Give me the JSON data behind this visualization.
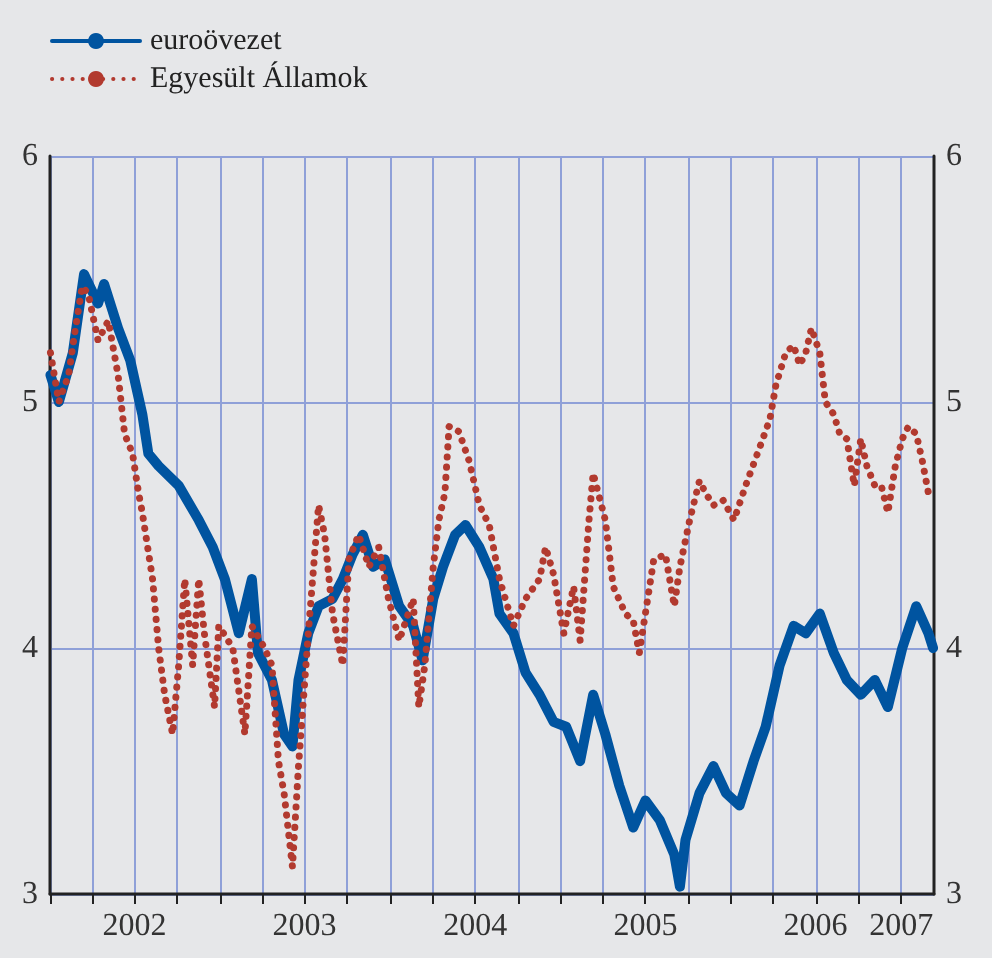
{
  "chart_data": {
    "type": "line",
    "xlim": [
      "2002-01-01",
      "2007-03-12"
    ],
    "xticks": [
      {
        "value": "2002-01-01",
        "label": null
      },
      {
        "value": "2002-04-01",
        "label": null
      },
      {
        "value": "2002-07-01",
        "label": "2002"
      },
      {
        "value": "2002-10-01",
        "label": null
      },
      {
        "value": "2003-01-01",
        "label": null
      },
      {
        "value": "2003-04-01",
        "label": null
      },
      {
        "value": "2003-07-01",
        "label": "2003"
      },
      {
        "value": "2003-10-01",
        "label": null
      },
      {
        "value": "2004-01-01",
        "label": null
      },
      {
        "value": "2004-04-01",
        "label": null
      },
      {
        "value": "2004-07-01",
        "label": "2004"
      },
      {
        "value": "2004-10-01",
        "label": null
      },
      {
        "value": "2005-01-01",
        "label": null
      },
      {
        "value": "2005-04-01",
        "label": null
      },
      {
        "value": "2005-07-01",
        "label": "2005"
      },
      {
        "value": "2005-10-01",
        "label": null
      },
      {
        "value": "2006-01-01",
        "label": null
      },
      {
        "value": "2006-04-01",
        "label": null
      },
      {
        "value": "2006-07-01",
        "label": "2006"
      },
      {
        "value": "2006-10-01",
        "label": null
      },
      {
        "value": "2007-01-01",
        "label": "2007"
      }
    ],
    "ylim": [
      3,
      6
    ],
    "yticks": [
      3,
      4,
      5,
      6
    ],
    "y2lim": [
      3,
      6
    ],
    "y2ticks": [
      3,
      4,
      5,
      6
    ],
    "grid": true,
    "legend": "top left",
    "marker": "none",
    "series": [
      {
        "name": "euroövezet",
        "color": "#0054a0",
        "line_style": "solid",
        "x": [
          "2002-01-02",
          "2002-01-20",
          "2002-02-19",
          "2002-03-15",
          "2002-04-14",
          "2002-04-27",
          "2002-05-27",
          "2002-06-22",
          "2002-07-18",
          "2002-07-31",
          "2002-08-22",
          "2002-10-04",
          "2002-11-16",
          "2002-12-16",
          "2003-01-11",
          "2003-02-10",
          "2003-03-10",
          "2003-03-23",
          "2003-04-22",
          "2003-05-18",
          "2003-06-05",
          "2003-06-18",
          "2003-07-09",
          "2003-07-31",
          "2003-08-30",
          "2003-09-21",
          "2003-10-12",
          "2003-11-03",
          "2003-11-25",
          "2003-12-20",
          "2004-01-20",
          "2004-02-19",
          "2004-03-10",
          "2004-04-02",
          "2004-04-23",
          "2004-05-19",
          "2004-06-10",
          "2004-07-10",
          "2004-08-09",
          "2004-08-22",
          "2004-09-21",
          "2004-10-17",
          "2004-11-16",
          "2004-12-16",
          "2005-01-12",
          "2005-02-11",
          "2005-03-11",
          "2005-04-06",
          "2005-05-06",
          "2005-06-05",
          "2005-07-01",
          "2005-08-01",
          "2005-09-01",
          "2005-09-13",
          "2005-09-25",
          "2005-10-25",
          "2005-11-24",
          "2005-12-21",
          "2006-01-19",
          "2006-02-18",
          "2006-03-16",
          "2006-04-15",
          "2006-05-15",
          "2006-06-10",
          "2006-07-10",
          "2006-08-09",
          "2006-09-06",
          "2006-10-06",
          "2006-11-05",
          "2006-12-03",
          "2007-01-03",
          "2007-02-02",
          "2007-02-28",
          "2007-03-10"
        ],
        "values": [
          5.11,
          5.0,
          5.2,
          5.52,
          5.4,
          5.48,
          5.3,
          5.17,
          4.95,
          4.79,
          4.74,
          4.66,
          4.52,
          4.41,
          4.28,
          4.06,
          4.28,
          3.98,
          3.87,
          3.65,
          3.6,
          3.87,
          4.06,
          4.17,
          4.2,
          4.28,
          4.38,
          4.46,
          4.33,
          4.36,
          4.17,
          4.09,
          3.95,
          4.2,
          4.33,
          4.46,
          4.5,
          4.41,
          4.28,
          4.14,
          4.06,
          3.9,
          3.81,
          3.7,
          3.68,
          3.54,
          3.81,
          3.65,
          3.44,
          3.27,
          3.38,
          3.3,
          3.16,
          3.03,
          3.22,
          3.41,
          3.52,
          3.41,
          3.36,
          3.54,
          3.68,
          3.93,
          4.09,
          4.06,
          4.14,
          3.98,
          3.87,
          3.81,
          3.87,
          3.76,
          4.0,
          4.17,
          4.06,
          4.0
        ]
      },
      {
        "name": "Egyesült Államok",
        "color": "#b23a2f",
        "line_style": "dotted",
        "x": [
          "2002-01-02",
          "2002-01-20",
          "2002-02-10",
          "2002-02-23",
          "2002-03-11",
          "2002-03-24",
          "2002-04-14",
          "2002-05-06",
          "2002-05-27",
          "2002-06-10",
          "2002-06-27",
          "2002-07-10",
          "2002-07-18",
          "2002-08-09",
          "2002-08-22",
          "2002-09-04",
          "2002-09-21",
          "2002-10-04",
          "2002-10-17",
          "2002-11-03",
          "2002-11-16",
          "2002-11-28",
          "2002-12-20",
          "2002-12-29",
          "2003-01-28",
          "2003-02-23",
          "2003-03-10",
          "2003-04-06",
          "2003-04-22",
          "2003-05-06",
          "2003-05-18",
          "2003-06-05",
          "2003-06-18",
          "2003-07-09",
          "2003-07-31",
          "2003-08-13",
          "2003-08-30",
          "2003-09-21",
          "2003-10-04",
          "2003-10-25",
          "2003-11-16",
          "2003-12-07",
          "2003-12-28",
          "2004-01-20",
          "2004-02-19",
          "2004-03-02",
          "2004-03-15",
          "2004-04-02",
          "2004-04-14",
          "2004-04-27",
          "2004-05-06",
          "2004-05-27",
          "2004-06-18",
          "2004-07-10",
          "2004-07-31",
          "2004-08-22",
          "2004-09-21",
          "2004-10-17",
          "2004-11-16",
          "2004-11-29",
          "2004-12-16",
          "2005-01-07",
          "2005-01-28",
          "2005-02-11",
          "2005-03-02",
          "2005-03-11",
          "2005-04-06",
          "2005-04-23",
          "2005-05-19",
          "2005-06-05",
          "2005-06-18",
          "2005-07-01",
          "2005-07-19",
          "2005-08-13",
          "2005-09-01",
          "2005-09-13",
          "2005-10-04",
          "2005-10-25",
          "2005-11-07",
          "2005-11-24",
          "2005-12-15",
          "2006-01-07",
          "2006-02-01",
          "2006-03-04",
          "2006-03-25",
          "2006-04-07",
          "2006-04-28",
          "2006-05-15",
          "2006-05-28",
          "2006-06-10",
          "2006-06-22",
          "2006-07-10",
          "2006-07-22",
          "2006-08-09",
          "2006-08-22",
          "2006-09-06",
          "2006-09-22",
          "2006-10-06",
          "2006-10-19",
          "2006-11-05",
          "2006-11-19",
          "2006-12-03",
          "2006-12-19",
          "2007-01-03",
          "2007-01-16",
          "2007-02-02",
          "2007-02-15",
          "2007-02-28"
        ],
        "values": [
          5.2,
          5.0,
          5.11,
          5.28,
          5.47,
          5.44,
          5.25,
          5.33,
          5.11,
          4.87,
          4.79,
          4.63,
          4.55,
          4.28,
          4.0,
          3.81,
          3.65,
          3.93,
          4.28,
          3.93,
          4.28,
          4.06,
          3.76,
          4.09,
          4.0,
          3.65,
          4.09,
          4.0,
          3.93,
          3.54,
          3.41,
          3.11,
          3.52,
          4.06,
          4.58,
          4.46,
          4.14,
          3.93,
          4.36,
          4.46,
          4.33,
          4.41,
          4.2,
          4.03,
          4.2,
          3.76,
          3.93,
          4.33,
          4.52,
          4.63,
          4.9,
          4.88,
          4.76,
          4.58,
          4.5,
          4.28,
          4.09,
          4.2,
          4.28,
          4.41,
          4.3,
          4.06,
          4.25,
          4.03,
          4.52,
          4.71,
          4.52,
          4.25,
          4.14,
          4.11,
          3.98,
          4.14,
          4.36,
          4.38,
          4.17,
          4.33,
          4.52,
          4.68,
          4.63,
          4.58,
          4.6,
          4.52,
          4.66,
          4.82,
          4.93,
          5.07,
          5.2,
          5.23,
          5.15,
          5.2,
          5.3,
          5.2,
          5.0,
          4.95,
          4.87,
          4.85,
          4.66,
          4.85,
          4.74,
          4.66,
          4.66,
          4.55,
          4.74,
          4.85,
          4.9,
          4.87,
          4.76,
          4.63
        ]
      }
    ]
  }
}
